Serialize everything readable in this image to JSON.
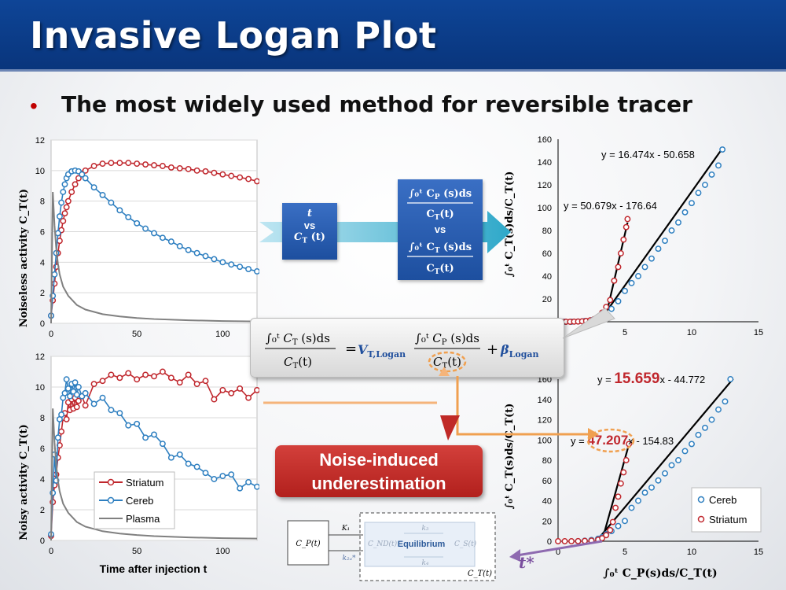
{
  "slide": {
    "title": "Invasive Logan Plot",
    "bullet": "•",
    "subtitle": "The most widely used method for reversible tracer"
  },
  "flow": {
    "box1_line1": "t",
    "box1_vs": "vs",
    "box1_line3": "C",
    "box1_line3_sub": "T",
    "box1_line3_arg": "(t)",
    "box2_vs": "vs"
  },
  "equation": {
    "lhs_num": "∫₀ᵗ C_T (s)ds",
    "lhs_den": "C_T(t)",
    "equals": "=",
    "slope": "V",
    "slope_sub": "T,Logan",
    "rhs_num": "∫₀ᵗ C_P (s)ds",
    "rhs_den": "C_T(t)",
    "plus": "+",
    "intercept": "β",
    "intercept_sub": "Logan"
  },
  "callout": {
    "line1": "Noise-induced",
    "line2": "underestimation"
  },
  "compartment": {
    "cp": "C_P(t)",
    "k1": "K₁",
    "k2a": "k₂ₐ*",
    "cnd": "C_ND(t)",
    "equilibrium": "Equilibrium",
    "cs": "C_S(t)",
    "k3": "k₃",
    "k4": "k₄",
    "ct": "C_T(t)"
  },
  "tstar": "t*",
  "chart_data": [
    {
      "id": "noiseless-tac",
      "type": "line",
      "ylabel": "Noiseless activity C_T(t)",
      "xticks": [
        "0",
        "50",
        "100"
      ],
      "yticks": [
        "0",
        "2",
        "4",
        "6",
        "8",
        "10",
        "12"
      ],
      "xlim": [
        0,
        120
      ],
      "ylim": [
        0,
        12
      ],
      "series": [
        {
          "name": "Striatum",
          "color": "#c0272d",
          "x": [
            0,
            1,
            2,
            3,
            4,
            5,
            6,
            7,
            8,
            9,
            10,
            12,
            14,
            16,
            18,
            20,
            25,
            30,
            35,
            40,
            45,
            50,
            55,
            60,
            65,
            70,
            75,
            80,
            85,
            90,
            95,
            100,
            105,
            110,
            115,
            120
          ],
          "y": [
            0.5,
            1.5,
            2.6,
            3.7,
            4.6,
            5.4,
            6.1,
            6.7,
            7.2,
            7.6,
            8.0,
            8.6,
            9.1,
            9.5,
            9.8,
            10.0,
            10.3,
            10.45,
            10.5,
            10.5,
            10.5,
            10.45,
            10.4,
            10.35,
            10.3,
            10.2,
            10.15,
            10.1,
            10.0,
            9.95,
            9.85,
            9.75,
            9.65,
            9.55,
            9.45,
            9.3
          ]
        },
        {
          "name": "Cereb",
          "color": "#2e7fc0",
          "x": [
            0,
            1,
            2,
            3,
            4,
            5,
            6,
            7,
            8,
            9,
            10,
            12,
            14,
            16,
            18,
            20,
            25,
            30,
            35,
            40,
            45,
            50,
            55,
            60,
            65,
            70,
            75,
            80,
            85,
            90,
            95,
            100,
            105,
            110,
            115,
            120
          ],
          "y": [
            0.5,
            1.8,
            3.2,
            4.6,
            5.9,
            7.0,
            7.9,
            8.6,
            9.1,
            9.5,
            9.75,
            9.95,
            10.0,
            9.95,
            9.75,
            9.5,
            8.9,
            8.4,
            7.9,
            7.4,
            6.95,
            6.55,
            6.2,
            5.9,
            5.6,
            5.35,
            5.05,
            4.8,
            4.6,
            4.4,
            4.2,
            4.0,
            3.85,
            3.7,
            3.55,
            3.4
          ]
        },
        {
          "name": "Plasma",
          "color": "#808080",
          "x": [
            0,
            1,
            2,
            3,
            4,
            5,
            7,
            10,
            15,
            20,
            30,
            40,
            50,
            60,
            80,
            100,
            120
          ],
          "y": [
            0,
            8.6,
            6.4,
            4.9,
            3.9,
            3.2,
            2.4,
            1.8,
            1.2,
            0.9,
            0.6,
            0.45,
            0.35,
            0.28,
            0.2,
            0.15,
            0.12
          ]
        }
      ]
    },
    {
      "id": "noisy-tac",
      "type": "line",
      "ylabel": "Noisy activity C_T(t)",
      "xlabel": "Time after injection t",
      "xticks": [
        "0",
        "50",
        "100"
      ],
      "yticks": [
        "0",
        "2",
        "4",
        "6",
        "8",
        "10",
        "12"
      ],
      "xlim": [
        0,
        120
      ],
      "ylim": [
        0,
        12
      ],
      "legend": [
        "Striatum",
        "Cereb",
        "Plasma"
      ],
      "series": [
        {
          "name": "Striatum",
          "color": "#c0272d",
          "x": [
            0,
            1,
            2,
            3,
            4,
            5,
            6,
            7,
            8,
            9,
            10,
            11,
            12,
            13,
            14,
            15,
            16,
            18,
            20,
            25,
            30,
            35,
            40,
            45,
            50,
            55,
            60,
            65,
            70,
            75,
            80,
            85,
            90,
            95,
            100,
            105,
            110,
            115,
            120
          ],
          "y": [
            0.3,
            2.5,
            3.6,
            4.3,
            5.4,
            6.2,
            7.1,
            8.0,
            8.3,
            7.9,
            9.0,
            8.5,
            9.2,
            8.6,
            9.3,
            8.7,
            9.1,
            9.4,
            8.8,
            10.2,
            10.4,
            10.8,
            10.6,
            10.9,
            10.5,
            10.8,
            10.7,
            11.0,
            10.6,
            10.3,
            10.8,
            10.2,
            10.4,
            9.2,
            9.8,
            9.6,
            9.9,
            9.3,
            9.8
          ]
        },
        {
          "name": "Cereb",
          "color": "#2e7fc0",
          "x": [
            0,
            1,
            2,
            3,
            4,
            5,
            6,
            7,
            8,
            9,
            10,
            11,
            12,
            13,
            14,
            15,
            16,
            18,
            20,
            25,
            30,
            35,
            40,
            45,
            50,
            55,
            60,
            65,
            70,
            75,
            80,
            85,
            90,
            95,
            100,
            105,
            110,
            115,
            120
          ],
          "y": [
            0.4,
            3.1,
            5.6,
            3.9,
            6.7,
            7.9,
            8.2,
            9.3,
            9.6,
            10.5,
            9.9,
            9.4,
            10.2,
            9.7,
            10.3,
            9.5,
            10.0,
            9.4,
            9.6,
            8.9,
            9.3,
            8.5,
            8.3,
            7.5,
            7.6,
            6.7,
            6.9,
            6.3,
            5.4,
            5.6,
            5.0,
            4.8,
            4.4,
            4.0,
            4.2,
            4.3,
            3.4,
            3.8,
            3.5
          ]
        },
        {
          "name": "Plasma",
          "color": "#808080",
          "x": [
            0,
            1,
            2,
            3,
            4,
            5,
            7,
            10,
            15,
            20,
            30,
            40,
            50,
            60,
            80,
            100,
            120
          ],
          "y": [
            0,
            8.6,
            6.4,
            4.9,
            3.9,
            3.2,
            2.4,
            1.8,
            1.2,
            0.9,
            0.6,
            0.45,
            0.35,
            0.28,
            0.2,
            0.15,
            0.12
          ]
        }
      ]
    },
    {
      "id": "logan-noiseless",
      "type": "scatter",
      "ylabel": "∫₀ᵗ C_T(s)ds/C_T(t)",
      "xticks": [
        "5",
        "10",
        "15"
      ],
      "yticks": [
        "20",
        "40",
        "60",
        "80",
        "100",
        "120",
        "140",
        "160"
      ],
      "xlim": [
        0,
        15
      ],
      "ylim": [
        0,
        160
      ],
      "annotations": [
        "y = 16.474x - 50.658",
        "y = 50.679x - 176.64"
      ],
      "series": [
        {
          "name": "Cereb",
          "color": "#2e7fc0",
          "x": [
            0,
            0.5,
            1,
            1.5,
            2,
            2.5,
            3,
            3.3,
            3.6,
            4,
            4.5,
            5,
            5.5,
            6,
            6.5,
            7,
            7.5,
            8,
            8.5,
            9,
            9.5,
            10,
            10.5,
            11,
            11.5,
            12,
            12.3
          ],
          "y": [
            0,
            0,
            0,
            0.2,
            0.6,
            1.3,
            2.5,
            4,
            7,
            11.3,
            18,
            27,
            33.9,
            40,
            48,
            55.4,
            64,
            71,
            80,
            87,
            96,
            104,
            113,
            120,
            129,
            137,
            151
          ]
        },
        {
          "name": "Striatum",
          "color": "#c0272d",
          "x": [
            0,
            0.3,
            0.6,
            0.9,
            1.2,
            1.5,
            1.8,
            2.1,
            2.4,
            2.7,
            3,
            3.3,
            3.6,
            3.9,
            4.2,
            4.5,
            4.7,
            4.9,
            5.1,
            5.2
          ],
          "y": [
            0,
            0,
            0,
            0,
            0.1,
            0.2,
            0.4,
            0.7,
            1.2,
            2.3,
            4.3,
            8,
            13,
            19,
            36,
            48,
            60,
            72,
            83,
            90
          ]
        }
      ],
      "fit_lines": [
        {
          "slope": 16.474,
          "intercept": -50.658,
          "color": "#000000",
          "x": [
            3.2,
            12.3
          ]
        },
        {
          "slope": 50.679,
          "intercept": -176.64,
          "color": "#000000",
          "x": [
            3.6,
            5.2
          ]
        }
      ]
    },
    {
      "id": "logan-noisy",
      "type": "scatter",
      "xlabel": "∫₀ᵗ C_P(s)ds/C_T(t)",
      "ylabel": "∫₀ᵗ C_T(s)ds/C_T(t)",
      "xticks": [
        "0",
        "5",
        "10",
        "15"
      ],
      "yticks": [
        "0",
        "20",
        "40",
        "60",
        "80",
        "100",
        "120",
        "140",
        "160"
      ],
      "xlim": [
        0,
        15
      ],
      "ylim": [
        0,
        160
      ],
      "legend": [
        "Cereb",
        "Striatum"
      ],
      "annotations": [
        {
          "prefix": "y = ",
          "value": "15.659",
          "suffix": "x - 44.772"
        },
        {
          "prefix": "y = ",
          "value": "47.207",
          "suffix": "x - 154.83"
        }
      ],
      "series": [
        {
          "name": "Cereb",
          "color": "#2e7fc0",
          "x": [
            1.5,
            2,
            2.5,
            3,
            3.3,
            3.6,
            4,
            4.5,
            5,
            5.5,
            6,
            6.5,
            7,
            7.5,
            8,
            8.5,
            9,
            9.5,
            10,
            10.5,
            11,
            11.5,
            12,
            12.5,
            12.9
          ],
          "y": [
            0,
            0.5,
            1.2,
            2.5,
            4,
            7,
            10,
            15,
            20,
            33,
            40,
            48,
            53,
            60,
            67,
            75,
            80,
            89,
            96,
            105,
            112,
            120,
            130,
            138,
            160
          ]
        },
        {
          "name": "Striatum",
          "color": "#c0272d",
          "x": [
            0,
            0.5,
            1,
            1.5,
            2,
            2.5,
            3,
            3.3,
            3.6,
            3.9,
            4.1,
            4.3,
            4.5,
            4.7,
            4.9,
            5.1,
            5.3
          ],
          "y": [
            0,
            0,
            0,
            0.1,
            0.3,
            0.6,
            1.5,
            3,
            6,
            11,
            19,
            33,
            44,
            57,
            68,
            80,
            96
          ]
        }
      ],
      "fit_lines": [
        {
          "slope": 15.659,
          "intercept": -44.772,
          "color": "#000000",
          "x": [
            2.9,
            13.1
          ]
        },
        {
          "slope": 47.207,
          "intercept": -154.83,
          "color": "#000000",
          "x": [
            3.3,
            5.3
          ]
        }
      ]
    }
  ]
}
